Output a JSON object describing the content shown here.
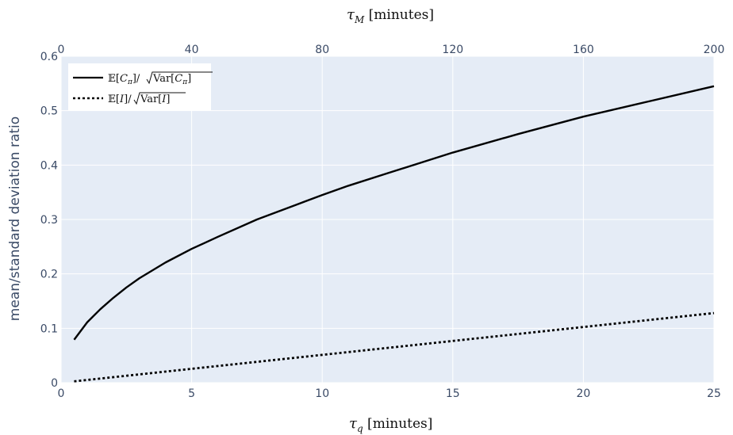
{
  "chart_data": {
    "type": "line",
    "xlabel": "τ_q [minutes]",
    "x2label": "τ_M [minutes]",
    "ylabel": "mean/standard deviation ratio",
    "xlim": [
      0,
      25
    ],
    "x2lim": [
      0,
      200
    ],
    "ylim": [
      0,
      0.6
    ],
    "x_ticks": [
      0,
      5,
      10,
      15,
      20,
      25
    ],
    "x2_ticks": [
      0,
      40,
      80,
      120,
      160,
      200
    ],
    "y_ticks": [
      0,
      0.1,
      0.2,
      0.3,
      0.4,
      0.5,
      0.6
    ],
    "grid": true,
    "legend_position": "top-left",
    "background": "#e5ecf6",
    "series": [
      {
        "name": "𝔼[C_π]/√Var[C_π]",
        "style": "solid",
        "color": "#000000",
        "x": [
          0.5,
          1,
          1.5,
          2,
          2.5,
          3,
          4,
          5,
          6,
          7.5,
          9,
          10,
          11,
          12.5,
          15,
          17.5,
          20,
          22.5,
          25
        ],
        "y": [
          0.079,
          0.111,
          0.135,
          0.156,
          0.175,
          0.192,
          0.221,
          0.246,
          0.268,
          0.3,
          0.327,
          0.345,
          0.362,
          0.385,
          0.423,
          0.457,
          0.489,
          0.517,
          0.545
        ]
      },
      {
        "name": "𝔼[I]/√Var[I]",
        "style": "dotted",
        "color": "#000000",
        "x": [
          0.5,
          25
        ],
        "y": [
          0.0025,
          0.128
        ]
      }
    ]
  }
}
